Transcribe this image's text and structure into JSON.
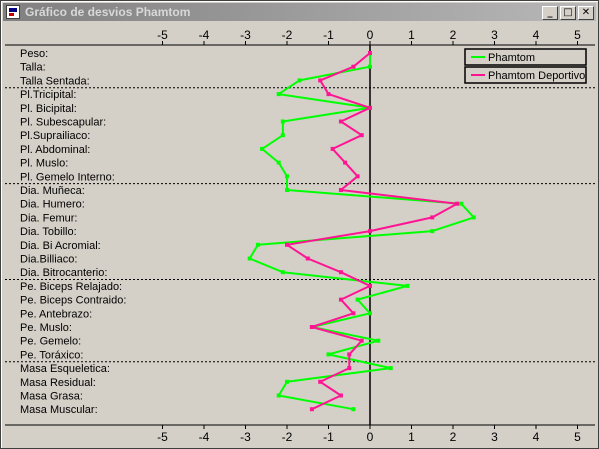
{
  "window": {
    "title": "Gráfico de desvios Phamtom",
    "minimize_glyph": "_",
    "maximize_glyph": "□",
    "close_glyph": "✕",
    "app_icon": "chart-window-icon"
  },
  "chart_data": {
    "type": "line",
    "orientation": "horizontal",
    "xlim": [
      -5.5,
      5.2
    ],
    "x_ticks": [
      -5,
      -4,
      -3,
      -2,
      -1,
      0,
      1,
      2,
      3,
      4,
      5
    ],
    "grid": false,
    "legend_position": "top-right",
    "categories": [
      "Peso:",
      "Talla:",
      "Talla Sentada:",
      "Pl.Tricipital:",
      "Pl. Bicipital:",
      "Pl. Subescapular:",
      "Pl.Suprailiaco:",
      "Pl. Abdominal:",
      "Pl. Muslo:",
      "Pl. Gemelo Interno:",
      "Dia. Muñeca:",
      "Dia. Humero:",
      "Dia. Femur:",
      "Dia. Tobillo:",
      "Dia. Bi Acromial:",
      "Dia.Billiaco:",
      "Dia. Bitrocanterio:",
      "Pe. Biceps Relajado:",
      "Pe. Biceps Contraido:",
      "Pe. Antebrazo:",
      "Pe. Muslo:",
      "Pe. Gemelo:",
      "Pe. Toráxico:",
      "Masa Esqueletica:",
      "Masa Residual:",
      "Masa Grasa:",
      "Masa Muscular:"
    ],
    "group_breaks_after": [
      2,
      9,
      16,
      22
    ],
    "series": [
      {
        "name": "Phamtom",
        "color": "#00ff00",
        "values": [
          0.0,
          0.0,
          -1.7,
          -2.2,
          0.0,
          -2.1,
          -2.1,
          -2.6,
          -2.2,
          -2.0,
          -2.0,
          2.2,
          2.5,
          1.5,
          -2.7,
          -2.9,
          -2.1,
          0.9,
          -0.3,
          0.0,
          -1.4,
          0.2,
          -1.0,
          0.5,
          -2.0,
          -2.2,
          -0.4
        ]
      },
      {
        "name": "Phamtom Deportivo",
        "color": "#ff1493",
        "values": [
          0.0,
          -0.4,
          -1.2,
          -1.0,
          0.0,
          -0.7,
          -0.2,
          -0.9,
          -0.6,
          -0.3,
          -0.7,
          2.1,
          1.5,
          0.0,
          -2.0,
          -1.5,
          -0.7,
          0.0,
          -0.7,
          -0.4,
          -1.4,
          -0.2,
          -0.5,
          -0.5,
          -1.2,
          -0.7,
          -1.4
        ]
      }
    ]
  }
}
